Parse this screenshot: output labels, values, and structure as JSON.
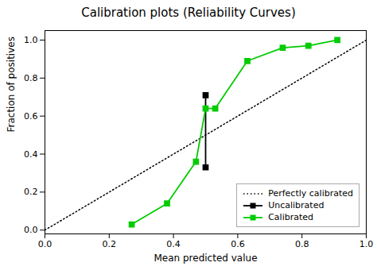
{
  "chart_data": {
    "type": "line",
    "title": "Calibration plots (Reliability Curves)",
    "xlabel": "Mean predicted value",
    "ylabel": "Fraction of positives",
    "xlim": [
      0.0,
      1.0
    ],
    "ylim": [
      -0.02,
      1.05
    ],
    "xticks": [
      {
        "value": 0.0,
        "label": "0.0"
      },
      0.2,
      0.4,
      0.6,
      0.8,
      {
        "value": 1.0,
        "label": "1.0"
      }
    ],
    "yticks": [
      {
        "value": 0.0,
        "label": "0.0"
      },
      0.2,
      0.4,
      0.6,
      0.8,
      {
        "value": 1.0,
        "label": "1.0"
      }
    ],
    "grid": false,
    "legend": "lower right",
    "series": [
      {
        "name": "Perfectly calibrated",
        "color": "#000000",
        "line_style": "dotted",
        "x": [
          0.0,
          1.0
        ],
        "values": [
          0.0,
          1.0
        ]
      },
      {
        "name": "Uncalibrated",
        "color": "#000000",
        "line_style": "solid",
        "marker": "square",
        "x": [
          0.5,
          0.5
        ],
        "values": [
          0.71,
          0.33
        ]
      },
      {
        "name": "Calibrated",
        "color": "#00cc00",
        "line_style": "solid",
        "marker": "square",
        "x": [
          0.27,
          0.38,
          0.47,
          0.5,
          0.53,
          0.63,
          0.74,
          0.82,
          0.91
        ],
        "values": [
          0.03,
          0.14,
          0.36,
          0.64,
          0.64,
          0.89,
          0.96,
          0.97,
          1.0
        ]
      }
    ]
  }
}
